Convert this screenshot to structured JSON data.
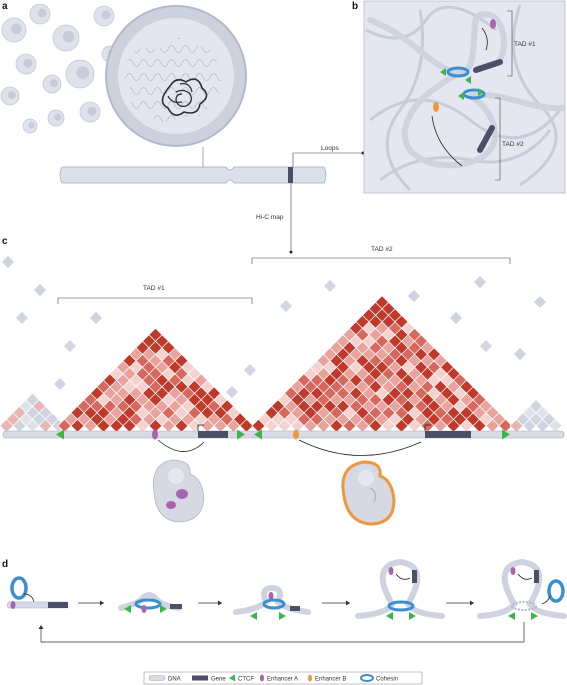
{
  "panels": {
    "a": "a",
    "b": "b",
    "c": "c",
    "d": "d"
  },
  "labels": {
    "loops": "Loops",
    "hic_map": "Hi-C map",
    "tad1": "TAD #1",
    "tad2": "TAD #2"
  },
  "legend": {
    "dna": "DNA",
    "gene": "Gene",
    "ctcf": "CTCF",
    "enhancer_a": "Enhancer A",
    "enhancer_b": "Enhancer B",
    "cohesin": "Cohesin"
  },
  "colors": {
    "dna": "#d8dbe6",
    "gene": "#4a5068",
    "ctcf": "#3db54a",
    "enhancer_a": "#a765b0",
    "enhancer_b": "#f0963c",
    "cohesin": "#3a8fd0",
    "hic_dark": "#c0392b",
    "hic_light": "#f1c4c0",
    "hic_grey": "#cfd4e0"
  }
}
